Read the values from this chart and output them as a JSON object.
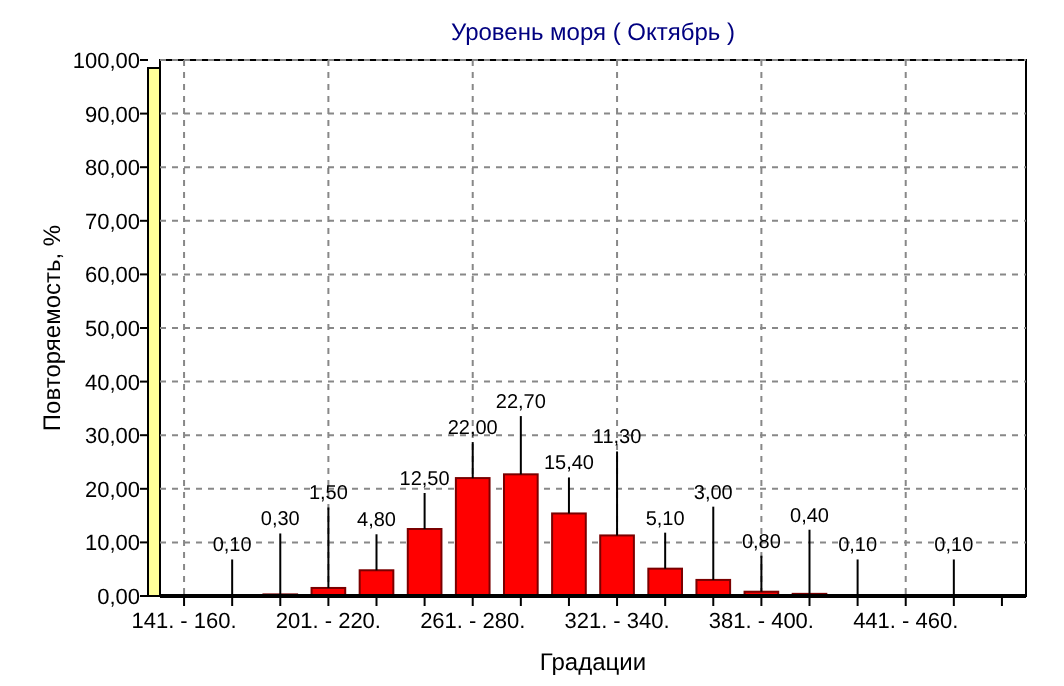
{
  "chart_data": {
    "type": "bar",
    "title": "Уровень моря     ( Октябрь )",
    "xlabel": "Градации",
    "ylabel": "Повторяемость, %",
    "categories": [
      "141. - 160.",
      null,
      null,
      "201. - 220.",
      null,
      null,
      "261. - 280.",
      null,
      null,
      "321. - 340.",
      null,
      null,
      "381. - 400.",
      null,
      null,
      "441. - 460.",
      null,
      null
    ],
    "values": [
      null,
      0.1,
      0.3,
      1.5,
      4.8,
      12.5,
      22.0,
      22.7,
      15.4,
      11.3,
      5.1,
      3.0,
      0.8,
      0.4,
      0.1,
      null,
      0.1,
      null
    ],
    "value_labels": [
      null,
      "0,10",
      "0,30",
      "1,50",
      "4,80",
      "12,50",
      "22,00",
      "22,70",
      "15,40",
      "11,30",
      "5,10",
      "3,00",
      "0,80",
      "0,40",
      "0,10",
      null,
      "0,10",
      null
    ],
    "color": "#ff0000",
    "ylim": [
      0,
      100
    ],
    "yticks": [
      {
        "value": 0,
        "label": "0,00"
      },
      {
        "value": 10,
        "label": "10,00"
      },
      {
        "value": 20,
        "label": "20,00"
      },
      {
        "value": 30,
        "label": "30,00"
      },
      {
        "value": 40,
        "label": "40,00"
      },
      {
        "value": 50,
        "label": "50,00"
      },
      {
        "value": 60,
        "label": "60,00"
      },
      {
        "value": 70,
        "label": "70,00"
      },
      {
        "value": 80,
        "label": "80,00"
      },
      {
        "value": 90,
        "label": "90,00"
      },
      {
        "value": 100,
        "label": "100,00"
      }
    ],
    "grid": true
  }
}
